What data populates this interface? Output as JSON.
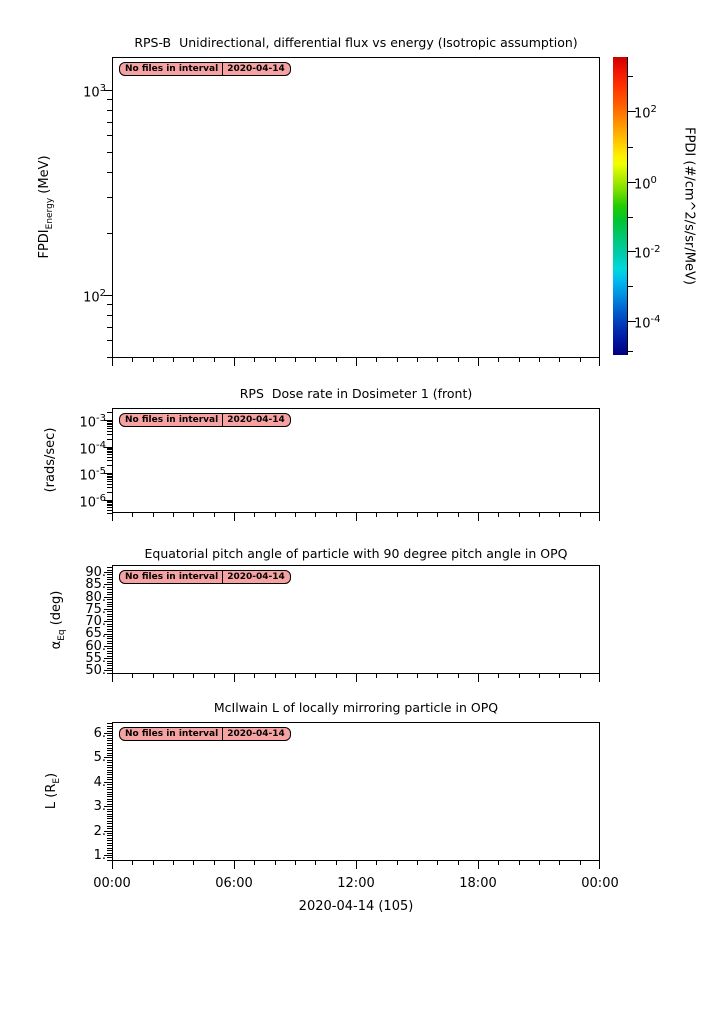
{
  "figure": {
    "badge": {
      "message": "No files in interval",
      "date": "2020-04-14",
      "bg_color": "#f7a2a2"
    },
    "xaxis": {
      "tick_labels": [
        "00:00",
        "06:00",
        "12:00",
        "18:00",
        "00:00"
      ],
      "label": "2020-04-14 (105)"
    },
    "panels": [
      {
        "title": "RPS-B  Unidirectional, differential flux vs energy (Isotropic assumption)",
        "ylabel": {
          "pre": "FPDI",
          "sub": "Energy",
          "post": " (MeV)"
        },
        "yticks": [
          {
            "base": "10",
            "exp": "3"
          },
          {
            "base": "10",
            "exp": "2"
          }
        ]
      },
      {
        "title": "RPS  Dose rate in Dosimeter 1 (front)",
        "ylabel": {
          "pre": "(rads/sec)",
          "sub": "",
          "post": ""
        },
        "yticks": [
          {
            "base": "10",
            "exp": "-3"
          },
          {
            "base": "10",
            "exp": "-4"
          },
          {
            "base": "10",
            "exp": "-5"
          },
          {
            "base": "10",
            "exp": "-6"
          }
        ]
      },
      {
        "title": "Equatorial pitch angle of particle with 90 degree pitch angle in OPQ",
        "ylabel": {
          "pre": "α",
          "sub": "Eq",
          "post": " (deg)"
        },
        "yticks": [
          {
            "base": "90.",
            "exp": ""
          },
          {
            "base": "85.",
            "exp": ""
          },
          {
            "base": "80.",
            "exp": ""
          },
          {
            "base": "75.",
            "exp": ""
          },
          {
            "base": "70.",
            "exp": ""
          },
          {
            "base": "65.",
            "exp": ""
          },
          {
            "base": "60.",
            "exp": ""
          },
          {
            "base": "55.",
            "exp": ""
          },
          {
            "base": "50.",
            "exp": ""
          }
        ]
      },
      {
        "title": "McIlwain L of locally mirroring particle in OPQ",
        "ylabel": {
          "pre": "L (R",
          "sub": "E",
          "post": ")"
        },
        "yticks": [
          {
            "base": "6.",
            "exp": ""
          },
          {
            "base": "5.",
            "exp": ""
          },
          {
            "base": "4.",
            "exp": ""
          },
          {
            "base": "3.",
            "exp": ""
          },
          {
            "base": "2.",
            "exp": ""
          },
          {
            "base": "1.",
            "exp": ""
          }
        ]
      }
    ],
    "colorbar": {
      "label": "FPDI (#/cm^2/s/sr/MeV)",
      "ticks": [
        {
          "base": "10",
          "exp": "2"
        },
        {
          "base": "10",
          "exp": "0"
        },
        {
          "base": "10",
          "exp": "-2"
        },
        {
          "base": "10",
          "exp": "-4"
        }
      ]
    }
  },
  "chart_data": [
    {
      "type": "heatmap",
      "title": "RPS-B  Unidirectional, differential flux vs energy (Isotropic assumption)",
      "xlabel": "2020-04-14 (105)",
      "ylabel": "FPDI_Energy (MeV)",
      "x_tick_labels": [
        "00:00",
        "06:00",
        "12:00",
        "18:00",
        "00:00"
      ],
      "x_range_hours": [
        0,
        24
      ],
      "yscale": "log",
      "ylim": [
        49,
        1450
      ],
      "y_tick_labels": [
        "10^3",
        "10^2"
      ],
      "colorbar": {
        "label": "FPDI (#/cm^2/s/sr/MeV)",
        "scale": "log",
        "tick_labels": [
          "10^2",
          "10^0",
          "10^-2",
          "10^-4"
        ],
        "range": [
          1e-05,
          3000
        ]
      },
      "series": [],
      "annotation": "No files in interval 2020-04-14"
    },
    {
      "type": "line",
      "title": "RPS  Dose rate in Dosimeter 1 (front)",
      "xlabel": "2020-04-14 (105)",
      "ylabel": "(rads/sec)",
      "x_tick_labels": [
        "00:00",
        "06:00",
        "12:00",
        "18:00",
        "00:00"
      ],
      "yscale": "log",
      "ylim": [
        3e-07,
        0.0028
      ],
      "y_tick_labels": [
        "10^-3",
        "10^-4",
        "10^-5",
        "10^-6"
      ],
      "series": [],
      "annotation": "No files in interval 2020-04-14"
    },
    {
      "type": "line",
      "title": "Equatorial pitch angle of particle with 90 degree pitch angle in OPQ",
      "xlabel": "2020-04-14 (105)",
      "ylabel": "α_Eq (deg)",
      "x_tick_labels": [
        "00:00",
        "06:00",
        "12:00",
        "18:00",
        "00:00"
      ],
      "yscale": "linear",
      "ylim": [
        48.5,
        92.8
      ],
      "y_ticks": [
        50,
        55,
        60,
        65,
        70,
        75,
        80,
        85,
        90
      ],
      "series": [],
      "annotation": "No files in interval 2020-04-14"
    },
    {
      "type": "line",
      "title": "McIlwain L of locally mirroring particle in OPQ",
      "xlabel": "2020-04-14 (105)",
      "ylabel": "L (R_E)",
      "x_tick_labels": [
        "00:00",
        "06:00",
        "12:00",
        "18:00",
        "00:00"
      ],
      "yscale": "linear",
      "ylim": [
        0.75,
        6.45
      ],
      "y_ticks": [
        1,
        2,
        3,
        4,
        5,
        6
      ],
      "series": [],
      "annotation": "No files in interval 2020-04-14"
    }
  ]
}
